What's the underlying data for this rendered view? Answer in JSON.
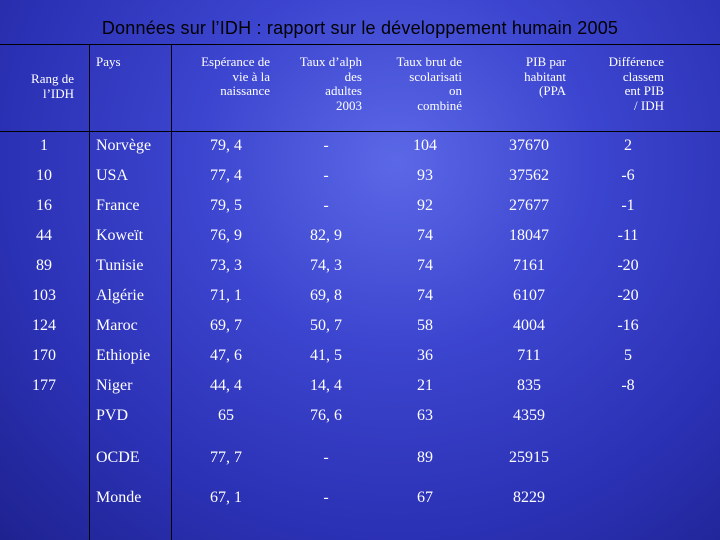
{
  "title": "Données sur l’IDH : rapport sur le développement humain 2005",
  "headers": {
    "rank": "Rang de\nl’IDH",
    "country": "Pays",
    "life": "Espérance de\nvie à la\nnaissance",
    "literacy": "Taux d’alph\ndes\nadultes\n2003",
    "enrolment": "Taux brut de\nscolarisati\non\ncombiné",
    "gdp": "PIB par\nhabitant\n(PPA",
    "diff": "Différence\nclassem\nent PIB\n/ IDH"
  },
  "rows": [
    {
      "rank": "1",
      "country": "Norvège",
      "life": "79, 4",
      "literacy": "-",
      "enrolment": "104",
      "gdp": "37670",
      "diff": "2"
    },
    {
      "rank": "10",
      "country": "USA",
      "life": "77, 4",
      "literacy": "-",
      "enrolment": "93",
      "gdp": "37562",
      "diff": "-6"
    },
    {
      "rank": "16",
      "country": "France",
      "life": "79, 5",
      "literacy": "-",
      "enrolment": "92",
      "gdp": "27677",
      "diff": "-1"
    },
    {
      "rank": "44",
      "country": "Koweït",
      "life": "76, 9",
      "literacy": "82, 9",
      "enrolment": "74",
      "gdp": "18047",
      "diff": "-11"
    },
    {
      "rank": "89",
      "country": "Tunisie",
      "life": "73, 3",
      "literacy": "74, 3",
      "enrolment": "74",
      "gdp": "7161",
      "diff": "-20"
    },
    {
      "rank": "103",
      "country": "Algérie",
      "life": "71, 1",
      "literacy": "69, 8",
      "enrolment": "74",
      "gdp": "6107",
      "diff": "-20"
    },
    {
      "rank": "124",
      "country": "Maroc",
      "life": "69, 7",
      "literacy": "50, 7",
      "enrolment": "58",
      "gdp": "4004",
      "diff": "-16"
    },
    {
      "rank": "170",
      "country": "Ethiopie",
      "life": "47, 6",
      "literacy": "41, 5",
      "enrolment": "36",
      "gdp": "711",
      "diff": "5"
    },
    {
      "rank": "177",
      "country": "Niger",
      "life": "44, 4",
      "literacy": "14, 4",
      "enrolment": "21",
      "gdp": "835",
      "diff": "-8"
    }
  ],
  "aggregates": [
    {
      "country": "PVD",
      "life": "65",
      "literacy": "76, 6",
      "enrolment": "63",
      "gdp": "4359"
    },
    {
      "country": "OCDE",
      "life": "77, 7",
      "literacy": "-",
      "enrolment": "89",
      "gdp": "25915"
    },
    {
      "country": "Monde",
      "life": "67, 1",
      "literacy": "-",
      "enrolment": "67",
      "gdp": "8229"
    }
  ]
}
